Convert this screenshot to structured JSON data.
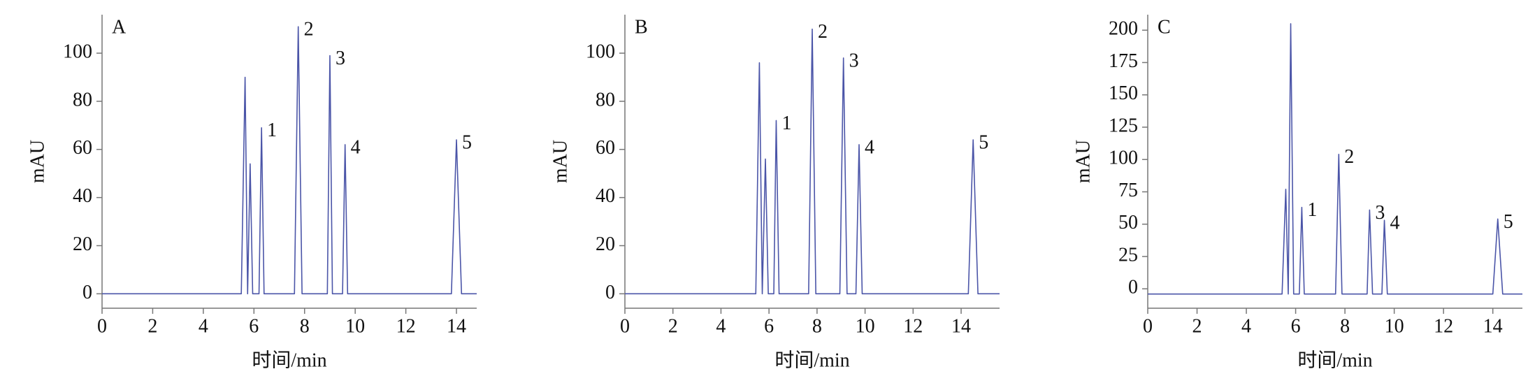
{
  "chart_data": [
    {
      "type": "line",
      "title": "A",
      "x_label": "时间/min",
      "y_label": "mAU",
      "xlim": [
        0,
        14.8
      ],
      "ylim": [
        -6,
        116
      ],
      "xticks": [
        0,
        2,
        4,
        6,
        8,
        10,
        12,
        14
      ],
      "yticks": [
        0,
        20,
        40,
        60,
        80,
        100
      ],
      "series": [
        {
          "color": "#4b55a8",
          "x": [
            0,
            5,
            5.5,
            5.65,
            5.75,
            5.85,
            5.95,
            6.2,
            6.3,
            6.4,
            7.6,
            7.75,
            7.9,
            8.9,
            9.0,
            9.1,
            9.5,
            9.6,
            9.7,
            13.8,
            14.0,
            14.2,
            14.8
          ],
          "values": [
            0,
            0,
            0,
            90,
            0,
            54,
            0,
            0,
            69,
            0,
            0,
            111,
            0,
            0,
            99,
            0,
            0,
            62,
            0,
            0,
            64,
            0,
            0
          ]
        }
      ],
      "peaks": [
        {
          "label": "1",
          "x": 6.3,
          "y": 69
        },
        {
          "label": "2",
          "x": 7.75,
          "y": 111
        },
        {
          "label": "3",
          "x": 9.0,
          "y": 99
        },
        {
          "label": "4",
          "x": 9.6,
          "y": 62
        },
        {
          "label": "5",
          "x": 14.0,
          "y": 64
        }
      ]
    },
    {
      "type": "line",
      "title": "B",
      "x_label": "时间/min",
      "y_label": "mAU",
      "xlim": [
        0,
        15.6
      ],
      "ylim": [
        -6,
        116
      ],
      "xticks": [
        0,
        2,
        4,
        6,
        8,
        10,
        12,
        14
      ],
      "yticks": [
        0,
        20,
        40,
        60,
        80,
        100
      ],
      "series": [
        {
          "color": "#4b55a8",
          "x": [
            0,
            5,
            5.45,
            5.6,
            5.72,
            5.85,
            5.97,
            6.2,
            6.3,
            6.42,
            7.65,
            7.8,
            7.95,
            8.95,
            9.1,
            9.25,
            9.62,
            9.75,
            9.88,
            14.3,
            14.5,
            14.7,
            15.6
          ],
          "values": [
            0,
            0,
            0,
            96,
            0,
            56,
            0,
            0,
            72,
            0,
            0,
            110,
            0,
            0,
            98,
            0,
            0,
            62,
            0,
            0,
            64,
            0,
            0
          ]
        }
      ],
      "peaks": [
        {
          "label": "1",
          "x": 6.3,
          "y": 72
        },
        {
          "label": "2",
          "x": 7.8,
          "y": 110
        },
        {
          "label": "3",
          "x": 9.1,
          "y": 98
        },
        {
          "label": "4",
          "x": 9.75,
          "y": 62
        },
        {
          "label": "5",
          "x": 14.5,
          "y": 64
        }
      ]
    },
    {
      "type": "line",
      "title": "C",
      "x_label": "时间/min",
      "y_label": "mAU",
      "xlim": [
        0,
        15.2
      ],
      "ylim": [
        -15,
        212
      ],
      "xticks": [
        0,
        2,
        4,
        6,
        8,
        10,
        12,
        14
      ],
      "yticks": [
        0,
        25,
        50,
        75,
        100,
        125,
        150,
        175,
        200
      ],
      "series": [
        {
          "color": "#4b55a8",
          "x": [
            0,
            5,
            5.45,
            5.6,
            5.7,
            5.8,
            5.92,
            6.15,
            6.25,
            6.35,
            7.62,
            7.75,
            7.88,
            8.9,
            9.0,
            9.12,
            9.5,
            9.6,
            9.72,
            14.0,
            14.2,
            14.4,
            15.2
          ],
          "values": [
            -4,
            -4,
            -4,
            77,
            -4,
            205,
            -4,
            -4,
            63,
            -4,
            -4,
            104,
            -4,
            -4,
            61,
            -4,
            -4,
            53,
            -4,
            -4,
            54,
            -4,
            -4
          ]
        }
      ],
      "peaks": [
        {
          "label": "1",
          "x": 6.25,
          "y": 63
        },
        {
          "label": "2",
          "x": 7.75,
          "y": 104
        },
        {
          "label": "3",
          "x": 9.0,
          "y": 61
        },
        {
          "label": "4",
          "x": 9.6,
          "y": 53
        },
        {
          "label": "5",
          "x": 14.2,
          "y": 54
        }
      ]
    }
  ]
}
